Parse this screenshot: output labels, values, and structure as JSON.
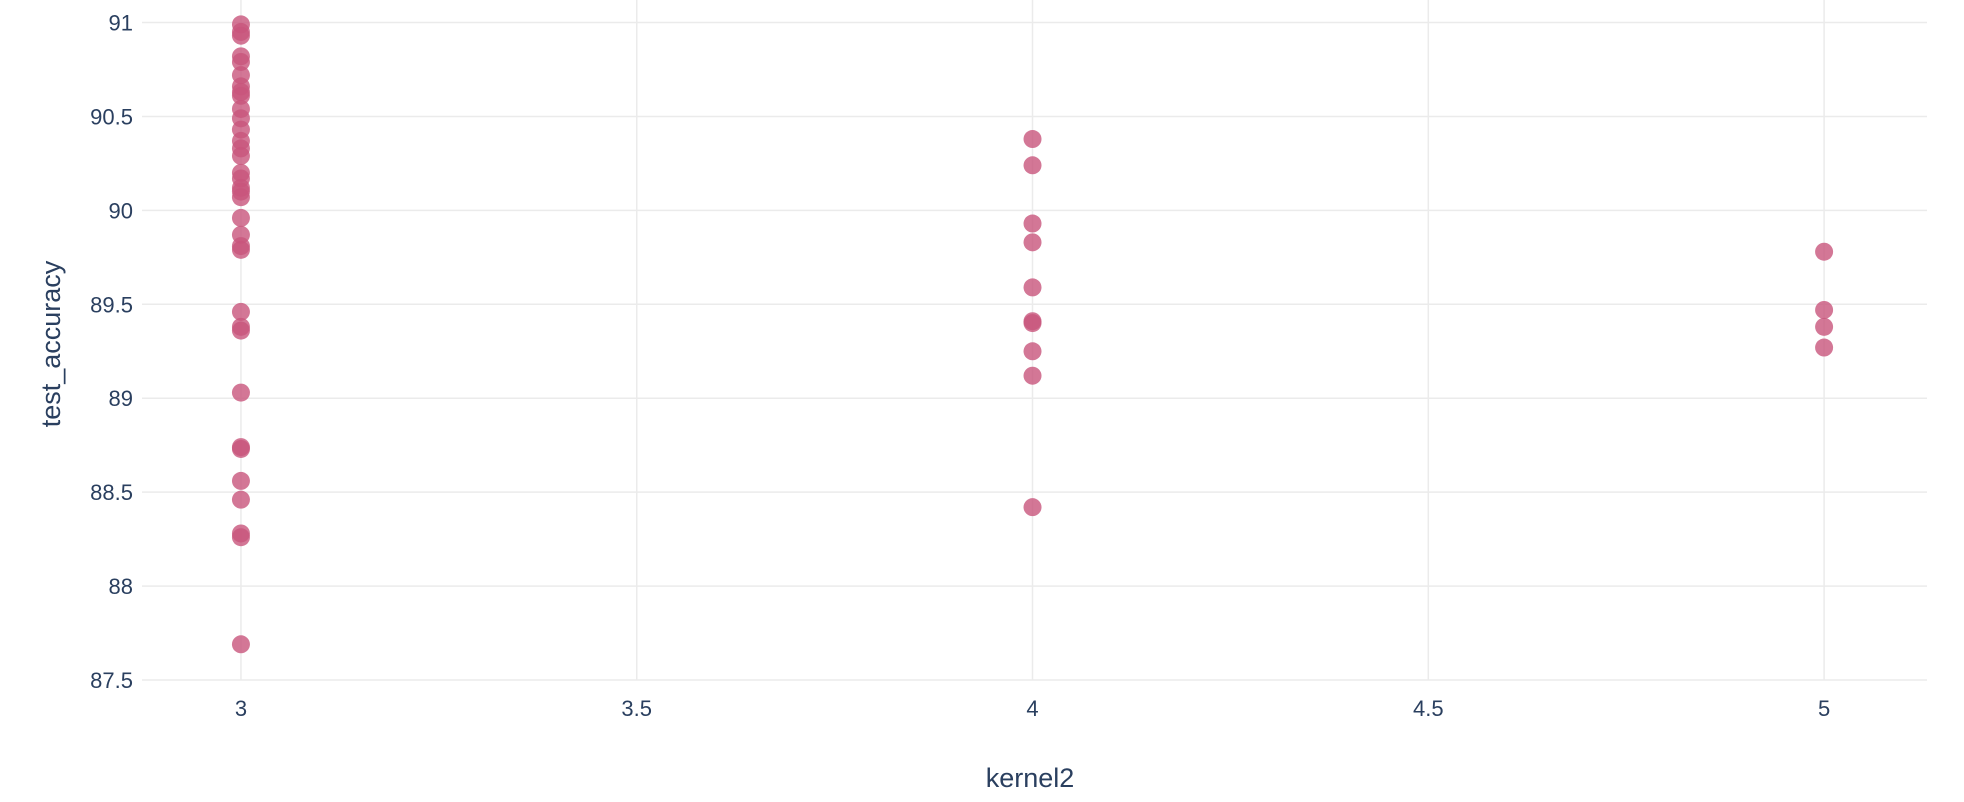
{
  "chart_data": {
    "type": "scatter",
    "title": "",
    "xlabel": "kernel2",
    "ylabel": "test_accuracy",
    "xlim": [
      2.875,
      5.13
    ],
    "ylim": [
      87.5,
      91.12
    ],
    "xticks": [
      3,
      3.5,
      4,
      4.5,
      5
    ],
    "xtick_labels": [
      "3",
      "3.5",
      "4",
      "4.5",
      "5"
    ],
    "yticks": [
      87.5,
      88,
      88.5,
      89,
      89.5,
      90,
      90.5,
      91
    ],
    "ytick_labels": [
      "87.5",
      "88",
      "88.5",
      "89",
      "89.5",
      "90",
      "90.5",
      "91"
    ],
    "grid": true,
    "marker_color": "#c8557c",
    "series": [
      {
        "points": [
          {
            "x": 3,
            "y": 90.99
          },
          {
            "x": 3,
            "y": 90.95
          },
          {
            "x": 3,
            "y": 90.93
          },
          {
            "x": 3,
            "y": 90.82
          },
          {
            "x": 3,
            "y": 90.79
          },
          {
            "x": 3,
            "y": 90.72
          },
          {
            "x": 3,
            "y": 90.66
          },
          {
            "x": 3,
            "y": 90.63
          },
          {
            "x": 3,
            "y": 90.61
          },
          {
            "x": 3,
            "y": 90.54
          },
          {
            "x": 3,
            "y": 90.49
          },
          {
            "x": 3,
            "y": 90.43
          },
          {
            "x": 3,
            "y": 90.37
          },
          {
            "x": 3,
            "y": 90.33
          },
          {
            "x": 3,
            "y": 90.29
          },
          {
            "x": 3,
            "y": 90.2
          },
          {
            "x": 3,
            "y": 90.17
          },
          {
            "x": 3,
            "y": 90.12
          },
          {
            "x": 3,
            "y": 90.1
          },
          {
            "x": 3,
            "y": 90.07
          },
          {
            "x": 3,
            "y": 89.96
          },
          {
            "x": 3,
            "y": 89.87
          },
          {
            "x": 3,
            "y": 89.81
          },
          {
            "x": 3,
            "y": 89.79
          },
          {
            "x": 3,
            "y": 89.46
          },
          {
            "x": 3,
            "y": 89.38
          },
          {
            "x": 3,
            "y": 89.36
          },
          {
            "x": 3,
            "y": 89.03
          },
          {
            "x": 3,
            "y": 88.74
          },
          {
            "x": 3,
            "y": 88.73
          },
          {
            "x": 3,
            "y": 88.56
          },
          {
            "x": 3,
            "y": 88.46
          },
          {
            "x": 3,
            "y": 88.28
          },
          {
            "x": 3,
            "y": 88.26
          },
          {
            "x": 3,
            "y": 87.69
          },
          {
            "x": 4,
            "y": 90.38
          },
          {
            "x": 4,
            "y": 90.24
          },
          {
            "x": 4,
            "y": 89.93
          },
          {
            "x": 4,
            "y": 89.83
          },
          {
            "x": 4,
            "y": 89.59
          },
          {
            "x": 4,
            "y": 89.41
          },
          {
            "x": 4,
            "y": 89.4
          },
          {
            "x": 4,
            "y": 89.25
          },
          {
            "x": 4,
            "y": 89.12
          },
          {
            "x": 4,
            "y": 88.42
          },
          {
            "x": 5,
            "y": 89.78
          },
          {
            "x": 5,
            "y": 89.47
          },
          {
            "x": 5,
            "y": 89.38
          },
          {
            "x": 5,
            "y": 89.27
          }
        ]
      }
    ]
  }
}
